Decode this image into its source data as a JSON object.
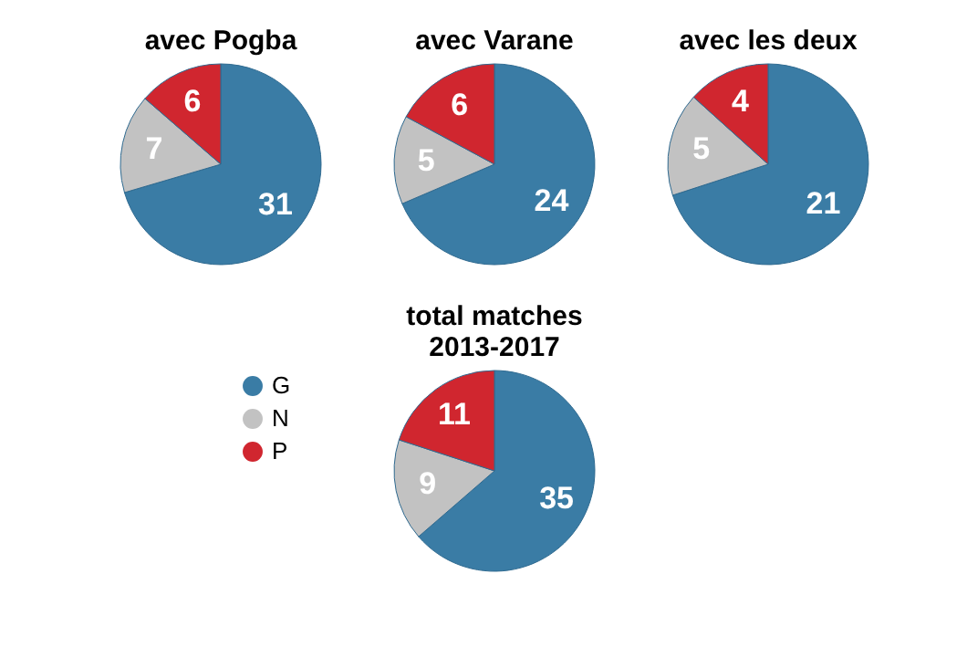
{
  "chart_data": [
    {
      "type": "pie",
      "title": "avec Pogba",
      "categories": [
        null,
        null,
        null
      ],
      "values": [
        31,
        7,
        6
      ],
      "colors": [
        "#3a7ca5",
        "#c2c2c2",
        "#d0262f"
      ],
      "data_labels": true
    },
    {
      "type": "pie",
      "title": "avec Varane",
      "categories": [
        null,
        null,
        null
      ],
      "values": [
        24,
        5,
        6
      ],
      "colors": [
        "#3a7ca5",
        "#c2c2c2",
        "#d0262f"
      ],
      "data_labels": true
    },
    {
      "type": "pie",
      "title": "avec les deux",
      "categories": [
        null,
        null,
        null
      ],
      "values": [
        21,
        5,
        4
      ],
      "colors": [
        "#3a7ca5",
        "#c2c2c2",
        "#d0262f"
      ],
      "data_labels": true
    },
    {
      "type": "pie",
      "title": "total matches\n2013-2017",
      "categories": [
        "G",
        "N",
        "P"
      ],
      "values": [
        35,
        9,
        11
      ],
      "colors": [
        "#3a7ca5",
        "#c2c2c2",
        "#d0262f"
      ],
      "data_labels": true,
      "legend": "left",
      "marker": "circle"
    }
  ]
}
